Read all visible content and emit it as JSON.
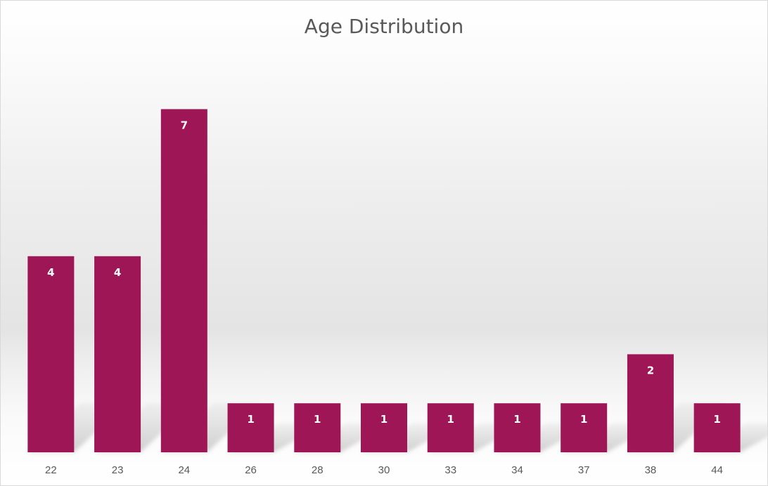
{
  "chart_data": {
    "type": "bar",
    "title": "Age Distribution",
    "xlabel": "",
    "ylabel": "",
    "categories": [
      "22",
      "23",
      "24",
      "26",
      "28",
      "30",
      "33",
      "34",
      "37",
      "38",
      "44"
    ],
    "values": [
      4,
      4,
      7,
      1,
      1,
      1,
      1,
      1,
      1,
      2,
      1
    ],
    "ylim": [
      0,
      8
    ],
    "grid": false,
    "legend": "none",
    "data_labels": true,
    "bar_color": "#9E1655"
  }
}
